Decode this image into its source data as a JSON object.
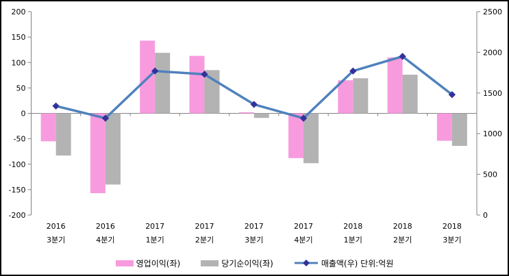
{
  "chart_data": {
    "type": "combo",
    "title": "",
    "grid": false,
    "legend_position": "bottom",
    "categories": [
      [
        "2016",
        "3분기"
      ],
      [
        "2016",
        "4분기"
      ],
      [
        "2017",
        "1분기"
      ],
      [
        "2017",
        "2분기"
      ],
      [
        "2017",
        "3분기"
      ],
      [
        "2017",
        "4분기"
      ],
      [
        "2018",
        "1분기"
      ],
      [
        "2018",
        "2분기"
      ],
      [
        "2018",
        "3분기"
      ]
    ],
    "series": [
      {
        "id": "operating-profit",
        "name": "영업이익(좌)",
        "legend_label": "영업이익(좌)",
        "type": "bar",
        "axis": "left",
        "color": "#F79BDE",
        "values": [
          -55,
          -157,
          143,
          113,
          2,
          -88,
          65,
          110,
          -54
        ]
      },
      {
        "id": "net-profit",
        "name": "당기순이익(좌)",
        "legend_label": "당기순이익(좌)",
        "type": "bar",
        "axis": "left",
        "color": "#B3B3B3",
        "values": [
          -83,
          -140,
          119,
          85,
          -9,
          -98,
          69,
          76,
          -64
        ]
      },
      {
        "id": "sales",
        "name": "매출액(우)",
        "legend_label": "매출액(우) 단위:억원",
        "type": "line",
        "axis": "right",
        "color": "#4F81BD",
        "marker_color": "#32329B",
        "values": [
          1340,
          1190,
          1770,
          1730,
          1360,
          1190,
          1770,
          1950,
          1480
        ]
      }
    ],
    "axes": {
      "left": {
        "min": -200,
        "max": 200,
        "ticks": [
          200,
          150,
          100,
          50,
          0,
          -50,
          -100,
          -150,
          -200
        ]
      },
      "right": {
        "min": 0,
        "max": 2500,
        "ticks": [
          2500,
          2000,
          1500,
          1000,
          500,
          0
        ]
      }
    },
    "style": {
      "axis_color": "#808080"
    }
  }
}
